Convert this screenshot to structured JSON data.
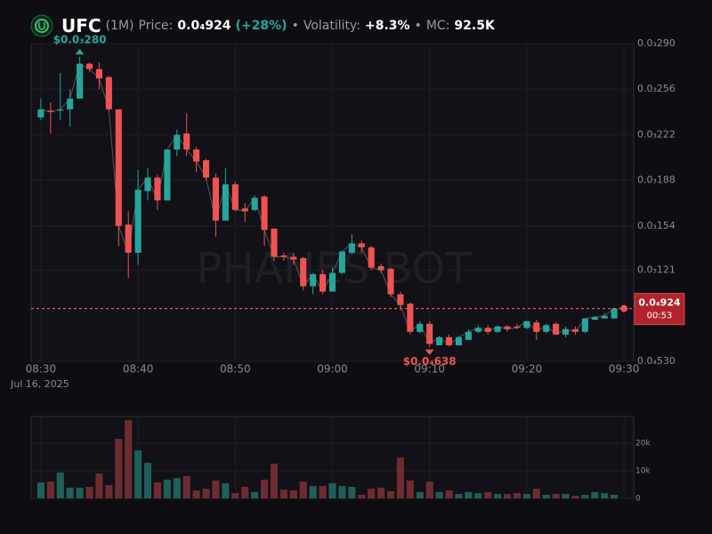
{
  "header": {
    "symbol": "UFC",
    "interval": "(1M)",
    "price_label": "Price:",
    "change": "(+28%)",
    "separator": "•",
    "volatility_label": "Volatility:",
    "volatility": "+8.3%",
    "mc_label": "MC:",
    "mc": "92.5K"
  },
  "chart_data": {
    "type": "candlestick",
    "watermark": "PHANES BOT",
    "date_label": "Jul 16, 2025",
    "x": [
      "08:30",
      "08:31",
      "08:32",
      "08:33",
      "08:34",
      "08:35",
      "08:36",
      "08:37",
      "08:38",
      "08:39",
      "08:40",
      "08:41",
      "08:42",
      "08:43",
      "08:44",
      "08:45",
      "08:46",
      "08:47",
      "08:48",
      "08:49",
      "08:50",
      "08:51",
      "08:52",
      "08:53",
      "08:54",
      "08:55",
      "08:56",
      "08:57",
      "08:58",
      "08:59",
      "09:00",
      "09:01",
      "09:02",
      "09:03",
      "09:04",
      "09:05",
      "09:06",
      "09:07",
      "09:08",
      "09:09",
      "09:10",
      "09:11",
      "09:12",
      "09:13",
      "09:14",
      "09:15",
      "09:16",
      "09:17",
      "09:18",
      "09:19",
      "09:20",
      "09:21",
      "09:22",
      "09:23",
      "09:24",
      "09:25",
      "09:26",
      "09:27",
      "09:28",
      "09:29"
    ],
    "xlim": [
      "08:29",
      "09:31"
    ],
    "xticks": [
      "08:30",
      "08:40",
      "08:50",
      "09:00",
      "09:10",
      "09:20",
      "09:30"
    ],
    "open": [
      0.000235,
      0.00024,
      0.00024,
      0.000241,
      0.000249,
      0.000275,
      0.000271,
      0.000265,
      0.000241,
      0.000155,
      0.000134,
      0.00018,
      0.00019,
      0.000173,
      0.000211,
      0.000223,
      0.000211,
      0.000203,
      0.00019,
      0.000158,
      0.000185,
      0.000167,
      0.000166,
      0.000176,
      0.000152,
      0.000132,
      0.000131,
      0.00013,
      0.000109,
      0.000118,
      0.000105,
      0.000119,
      0.000134,
      0.000141,
      0.000138,
      0.000124,
      0.000122,
      0.000103,
      9.6e-05,
      7.5e-05,
      8.1e-05,
      6.5e-05,
      7.1e-05,
      6.5e-05,
      6.9e-05,
      7.5e-05,
      7.8e-05,
      7.5e-05,
      7.9e-05,
      7.9e-05,
      7.8e-05,
      8.2e-05,
      7.5e-05,
      8.1e-05,
      7.3e-05,
      7.7e-05,
      7.5e-05,
      8.4e-05,
      8.5e-05,
      8.5e-05
    ],
    "high": [
      0.000249,
      0.000246,
      0.000268,
      0.000256,
      0.00028,
      0.000276,
      0.000276,
      0.000266,
      0.000241,
      0.000165,
      0.000196,
      0.000197,
      0.000192,
      0.000211,
      0.000226,
      0.000238,
      0.000213,
      0.000204,
      0.000193,
      0.000197,
      0.000187,
      0.000171,
      0.000177,
      0.000177,
      0.000152,
      0.000134,
      0.000134,
      0.000131,
      0.000119,
      0.000121,
      0.000123,
      0.000135,
      0.000148,
      0.000143,
      0.000139,
      0.000126,
      0.000123,
      0.000105,
      9.7e-05,
      8.3e-05,
      8.3e-05,
      7.2e-05,
      7.3e-05,
      7.2e-05,
      7.7e-05,
      8e-05,
      8e-05,
      8e-05,
      8e-05,
      8.1e-05,
      8.3e-05,
      8.4e-05,
      8.1e-05,
      8.2e-05,
      7.9e-05,
      7.9e-05,
      8.5e-05,
      8.7e-05,
      8.9e-05,
      9.3e-05
    ],
    "low": [
      0.000233,
      0.000223,
      0.000233,
      0.000228,
      0.000249,
      0.000269,
      0.000256,
      0.00024,
      0.000139,
      0.000115,
      0.000125,
      0.000173,
      0.000166,
      0.000173,
      0.000206,
      0.000206,
      0.000194,
      0.000188,
      0.000146,
      0.000158,
      0.000165,
      0.000157,
      0.000165,
      0.000139,
      0.000128,
      0.000128,
      0.000125,
      0.000106,
      0.000103,
      0.000103,
      0.000105,
      0.000118,
      0.000133,
      0.000134,
      0.000121,
      0.000119,
      0.000101,
      9.1e-05,
      7.3e-05,
      7.4e-05,
      6.38e-05,
      6.5e-05,
      6.4e-05,
      6.5e-05,
      6.9e-05,
      7.4e-05,
      7.3e-05,
      7.4e-05,
      7.5e-05,
      7.7e-05,
      7.7e-05,
      6.9e-05,
      7.4e-05,
      7.3e-05,
      7.1e-05,
      7.3e-05,
      7.4e-05,
      8.4e-05,
      8.5e-05,
      8.5e-05
    ],
    "close": [
      0.000241,
      0.000239,
      0.000241,
      0.000249,
      0.000275,
      0.000271,
      0.000264,
      0.000241,
      0.000154,
      0.000134,
      0.000181,
      0.00019,
      0.000173,
      0.000211,
      0.000222,
      0.000211,
      0.000202,
      0.00019,
      0.000158,
      0.000185,
      0.000166,
      0.000165,
      0.000175,
      0.000151,
      0.000131,
      0.000131,
      0.000129,
      0.000109,
      0.000118,
      0.000105,
      0.000119,
      0.000135,
      0.000141,
      0.000138,
      0.000123,
      0.000121,
      0.000103,
      9.5e-05,
      7.5e-05,
      8.1e-05,
      6.6e-05,
      7.1e-05,
      6.5e-05,
      7.1e-05,
      7.5e-05,
      7.8e-05,
      7.5e-05,
      7.9e-05,
      7.7e-05,
      7.8e-05,
      8.3e-05,
      7.5e-05,
      8e-05,
      7.3e-05,
      7.7e-05,
      7.5e-05,
      8.5e-05,
      8.6e-05,
      8.7e-05,
      9.24e-05
    ],
    "up_color": "#26a69a",
    "down_color": "#ef5350",
    "ylim": [
      5.3e-05,
      0.00029
    ],
    "yticks": [
      {
        "value": 0.00029,
        "label": "0.0₃290"
      },
      {
        "value": 0.000256,
        "label": "0.0₃256"
      },
      {
        "value": 0.000222,
        "label": "0.0₃222"
      },
      {
        "value": 0.000188,
        "label": "0.0₃188"
      },
      {
        "value": 0.000154,
        "label": "0.0₃154"
      },
      {
        "value": 0.000121,
        "label": "0.0₃121"
      },
      {
        "value": 5.3e-05,
        "label": "0.0₄530"
      }
    ],
    "grid": true,
    "max_label": "$0.0₃280",
    "min_label": "$0.0₄638",
    "current_price": {
      "value": 9.24e-05,
      "label": "0.0₄924"
    },
    "countdown": "00:53",
    "volume": {
      "values": [
        5800,
        6100,
        9400,
        3900,
        3900,
        4200,
        9000,
        4800,
        21600,
        28400,
        17400,
        12900,
        5800,
        6800,
        7400,
        8100,
        2900,
        3500,
        6500,
        5500,
        1900,
        4200,
        2300,
        6800,
        12600,
        3200,
        2900,
        6100,
        4500,
        4500,
        5500,
        4500,
        4200,
        1300,
        3500,
        3900,
        2600,
        14800,
        6500,
        2300,
        6100,
        2300,
        2900,
        1600,
        2300,
        1900,
        2300,
        1600,
        1600,
        1900,
        1600,
        3500,
        1300,
        1600,
        1600,
        1000,
        1300,
        2300,
        1900,
        1300
      ],
      "up_color": "#1f5e59",
      "down_color": "#6e2c31",
      "ylim": [
        0,
        29700
      ],
      "yticks": [
        0,
        {
          "value": 10000,
          "label": "10k"
        },
        {
          "value": 20000,
          "label": "20k"
        }
      ]
    }
  }
}
